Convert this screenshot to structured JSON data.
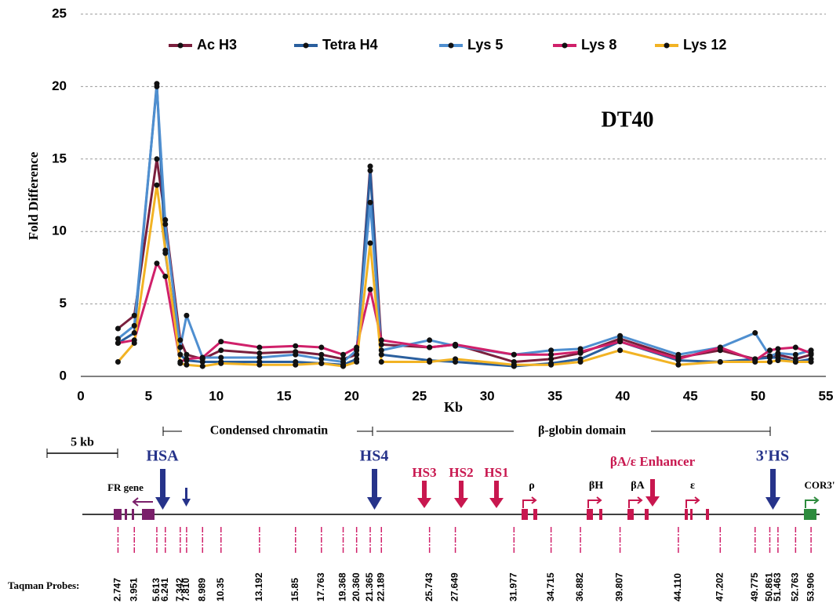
{
  "chart_data": {
    "type": "line",
    "annotation": "DT40",
    "xlabel": "Kb",
    "ylabel": "Fold Difference",
    "x": [
      2.747,
      3.951,
      5.613,
      6.241,
      7.342,
      7.81,
      8.989,
      10.35,
      13.192,
      15.85,
      17.763,
      19.368,
      20.36,
      21.365,
      22.189,
      25.743,
      27.649,
      31.977,
      34.715,
      36.882,
      39.807,
      44.11,
      47.202,
      49.775,
      50.861,
      51.463,
      52.763,
      53.906
    ],
    "series": [
      {
        "name": "Ac H3",
        "color": "#7a1f3d",
        "values": [
          3.3,
          4.2,
          15,
          10.8,
          2.5,
          1.5,
          1.2,
          1.8,
          1.6,
          1.7,
          1.5,
          1.2,
          1.5,
          14.5,
          2.2,
          2.0,
          2.2,
          1.0,
          1.2,
          1.6,
          2.6,
          1.3,
          1.8,
          1.2,
          1.4,
          1.5,
          1.2,
          1.5
        ]
      },
      {
        "name": "Tetra H4",
        "color": "#2a5f9e",
        "values": [
          2.3,
          3.0,
          20.2,
          8.5,
          1.5,
          1.1,
          1.0,
          1.0,
          1.0,
          1.0,
          0.9,
          0.8,
          1.2,
          14.2,
          1.5,
          1.1,
          1.0,
          0.7,
          0.9,
          1.2,
          2.4,
          1.1,
          1.0,
          1.2,
          1.3,
          1.3,
          1.0,
          1.2
        ]
      },
      {
        "name": "Lys 5",
        "color": "#4f8fd0",
        "values": [
          2.6,
          3.5,
          20.0,
          10.5,
          2.0,
          4.2,
          1.3,
          1.3,
          1.3,
          1.5,
          1.2,
          1.0,
          1.8,
          12.0,
          1.8,
          2.5,
          2.1,
          1.5,
          1.8,
          1.9,
          2.8,
          1.5,
          2.0,
          3.0,
          1.4,
          1.6,
          1.5,
          1.8
        ]
      },
      {
        "name": "Lys 8",
        "color": "#d0206a",
        "values": [
          2.3,
          2.5,
          7.8,
          6.9,
          1.0,
          1.2,
          1.3,
          2.4,
          2.0,
          2.1,
          2.0,
          1.5,
          2.0,
          6.0,
          2.5,
          2.0,
          2.2,
          1.5,
          1.5,
          1.7,
          2.4,
          1.2,
          2.0,
          1.1,
          1.8,
          1.9,
          2.0,
          1.6
        ]
      },
      {
        "name": "Lys 12",
        "color": "#f2b324",
        "values": [
          1.0,
          2.3,
          13.2,
          8.7,
          0.9,
          0.8,
          0.7,
          0.9,
          0.8,
          0.8,
          0.9,
          0.7,
          1.0,
          9.2,
          1.0,
          1.0,
          1.2,
          0.8,
          0.8,
          1.0,
          1.8,
          0.8,
          1.0,
          1.0,
          1.0,
          1.1,
          1.0,
          1.0
        ]
      }
    ],
    "xlim": [
      0,
      55
    ],
    "ylim": [
      0,
      25
    ],
    "xticks": [
      0,
      5,
      10,
      15,
      20,
      25,
      30,
      35,
      40,
      45,
      50,
      55
    ],
    "yticks": [
      0,
      5,
      10,
      15,
      20,
      25
    ],
    "grid": true,
    "legend": "top"
  },
  "map": {
    "scale_bar": "5 kb",
    "domains": [
      "Condensed chromatin",
      "β-globin domain"
    ],
    "sites": [
      "HSA",
      "HS4",
      "3'HS",
      "HS3",
      "HS2",
      "HS1",
      "βA/ε Enhancer"
    ],
    "genes": [
      "FR gene",
      "ρ",
      "βH",
      "βA",
      "ε",
      "COR3'"
    ],
    "probes_title": "Taqman Probes:",
    "probes": [
      "2.747",
      "3.951",
      "5.613",
      "6.241",
      "7.342",
      "7.810",
      "8.989",
      "10.35",
      "13.192",
      "15.85",
      "17.763",
      "19.368",
      "20.360",
      "21.365",
      "22.189",
      "25.743",
      "27.649",
      "31.977",
      "34.715",
      "36.882",
      "39.807",
      "44.110",
      "47.202",
      "49.775",
      "50.861",
      "51.463",
      "52.763",
      "53.906"
    ]
  }
}
